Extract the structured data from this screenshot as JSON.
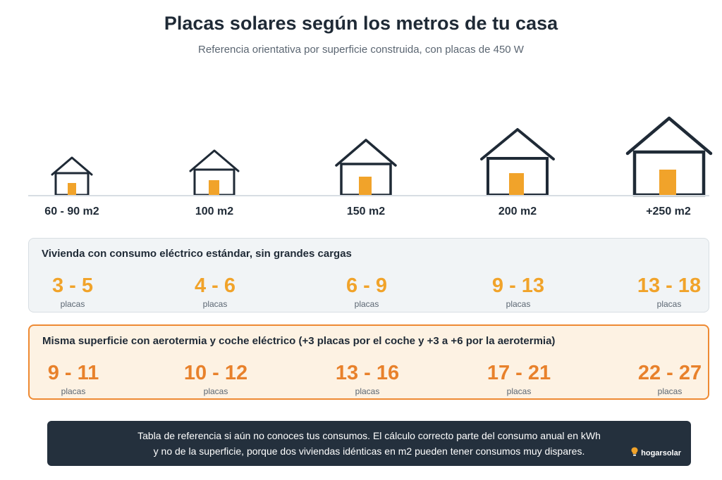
{
  "header": {
    "title": "Placas solares según los metros de tu casa",
    "subtitle": "Referencia orientativa por superficie construida, con placas de 450 W"
  },
  "colors": {
    "house_stroke": "#1f2a36",
    "door": "#f1a32a",
    "standard_value": "#f1a32a",
    "alt_value": "#e8812b",
    "alt_border": "#ee8a33",
    "alt_bg": "#fdf2e3",
    "std_bg": "#f1f4f6",
    "note_bg": "#24303d"
  },
  "houses": [
    {
      "label": "60 - 90 m2"
    },
    {
      "label": "100 m2"
    },
    {
      "label": "150 m2"
    },
    {
      "label": "200 m2"
    },
    {
      "label": "+250 m2"
    }
  ],
  "standard": {
    "title": "Vivienda con consumo eléctrico estándar, sin grandes cargas",
    "values": [
      {
        "range": "3 - 5",
        "unit": "placas"
      },
      {
        "range": "4 - 6",
        "unit": "placas"
      },
      {
        "range": "6 - 9",
        "unit": "placas"
      },
      {
        "range": "9 - 13",
        "unit": "placas"
      },
      {
        "range": "13 - 18",
        "unit": "placas"
      }
    ]
  },
  "aerothermia": {
    "title": "Misma superficie con aerotermia y coche eléctrico (+3 placas por el coche y +3 a +6 por la aerotermia)",
    "values": [
      {
        "range": "9 - 11",
        "unit": "placas"
      },
      {
        "range": "10 - 12",
        "unit": "placas"
      },
      {
        "range": "13 - 16",
        "unit": "placas"
      },
      {
        "range": "17 - 21",
        "unit": "placas"
      },
      {
        "range": "22 - 27",
        "unit": "placas"
      }
    ]
  },
  "note": {
    "line1": "Tabla de referencia si aún no conoces tus consumos. El cálculo correcto parte del consumo anual en kWh",
    "line2": "y no de la superficie, porque dos viviendas idénticas en m2 pueden tener consumos muy dispares.",
    "brand": "hogarsolar",
    "brand_icon": "lightbulb-logo-icon"
  }
}
